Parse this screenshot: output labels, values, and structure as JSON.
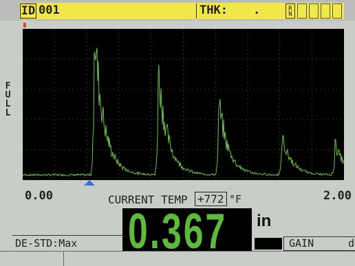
{
  "header": {
    "id_label": "ID",
    "id_value": "001",
    "thk_label": "THK:",
    "thk_value": ".",
    "flags": "RN"
  },
  "waveform": {
    "side_label": "FULL",
    "x_start": "0.00",
    "x_end": "2.00"
  },
  "readout": {
    "temp_label": "CURRENT TEMP",
    "temp_value": "+772",
    "temp_unit": "°F",
    "thickness": "0.367",
    "unit": "in"
  },
  "footer": {
    "mode": "DE-STD:Max",
    "gain_label": "GAIN",
    "gain_value": "d"
  }
}
